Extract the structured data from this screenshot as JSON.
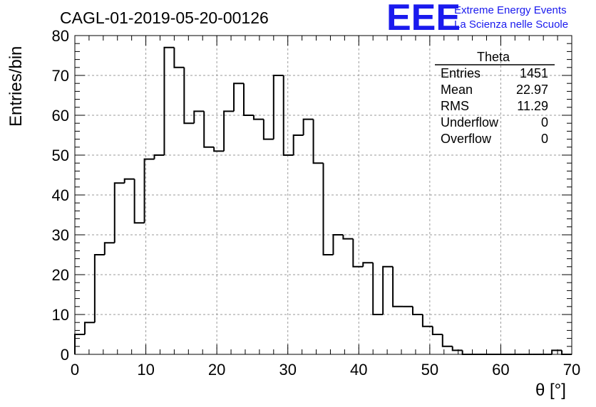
{
  "chart_data": {
    "type": "bar",
    "title": "CAGL-01-2019-05-20-00126",
    "xlabel": "θ [°]",
    "ylabel": "Entries/bin",
    "xlim": [
      0,
      70
    ],
    "ylim": [
      0,
      80
    ],
    "grid": true,
    "bin_width": 1.4,
    "bin_edges_start": 0,
    "values": [
      5,
      8,
      25,
      28,
      43,
      44,
      33,
      49,
      50,
      77,
      72,
      58,
      61,
      52,
      51,
      61,
      68,
      60,
      59,
      54,
      70,
      50,
      55,
      59,
      48,
      25,
      30,
      29,
      22,
      23,
      10,
      22,
      12,
      12,
      10,
      7,
      5,
      2,
      1,
      0,
      0,
      0,
      0,
      0,
      0,
      0,
      0,
      0,
      1,
      0
    ],
    "x_tick_labels": [
      "0",
      "10",
      "20",
      "30",
      "40",
      "50",
      "60",
      "70"
    ],
    "y_tick_labels": [
      "0",
      "10",
      "20",
      "30",
      "40",
      "50",
      "60",
      "70",
      "80"
    ],
    "x_ticks": [
      0,
      10,
      20,
      30,
      40,
      50,
      60,
      70
    ],
    "y_ticks": [
      0,
      10,
      20,
      30,
      40,
      50,
      60,
      70,
      80
    ],
    "stats": {
      "name": "Theta",
      "rows": [
        {
          "label": "Entries",
          "value": "1451"
        },
        {
          "label": "Mean",
          "value": "22.97"
        },
        {
          "label": "RMS",
          "value": "11.29"
        },
        {
          "label": "Underflow",
          "value": "0"
        },
        {
          "label": "Overflow",
          "value": "0"
        }
      ]
    },
    "logo": {
      "mark": "EEE",
      "line1": "Extreme Energy Events",
      "line2": "La Scienza nelle Scuole",
      "color": "#1a1aee"
    }
  }
}
